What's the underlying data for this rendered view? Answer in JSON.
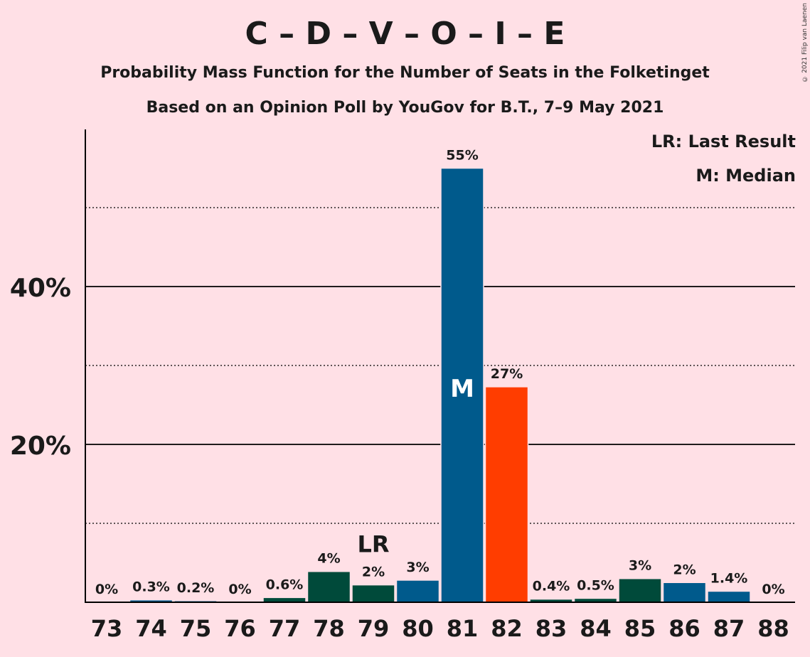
{
  "header": {
    "title": "C – D – V – O – I – E",
    "subtitle": "Probability Mass Function for the Number of Seats in the Folketinget",
    "subtitle2": "Based on an Opinion Poll by YouGov for B.T., 7–9 May 2021",
    "copyright": "© 2021 Filip van Laenen"
  },
  "legend": {
    "last_result": "LR: Last Result",
    "median": "M: Median"
  },
  "chart_data": {
    "type": "bar",
    "categories": [
      "73",
      "74",
      "75",
      "76",
      "77",
      "78",
      "79",
      "80",
      "81",
      "82",
      "83",
      "84",
      "85",
      "86",
      "87",
      "88"
    ],
    "values": [
      0,
      0.3,
      0.2,
      0,
      0.6,
      3.9,
      2.2,
      2.8,
      55,
      27.3,
      0.4,
      0.5,
      3.0,
      2.5,
      1.4,
      0
    ],
    "data_labels": [
      "0%",
      "0.3%",
      "0.2%",
      "0%",
      "0.6%",
      "4%",
      "2%",
      "3%",
      "55%",
      "27%",
      "0.4%",
      "0.5%",
      "3%",
      "2%",
      "1.4%",
      "0%"
    ],
    "bar_colors": [
      "#005A8C",
      "#005A8C",
      "#005A8C",
      "#005A8C",
      "#004A3A",
      "#004A3A",
      "#004A3A",
      "#005A8C",
      "#005A8C",
      "#FF3D00",
      "#004A3A",
      "#004A3A",
      "#004A3A",
      "#005A8C",
      "#005A8C",
      "#005A8C"
    ],
    "ylim": [
      0,
      60
    ],
    "y_ticks": [
      {
        "value": 20,
        "label": "20%"
      },
      {
        "value": 40,
        "label": "40%"
      }
    ],
    "y_minor_gridlines": [
      10,
      30,
      50
    ],
    "markers": {
      "last_result": {
        "category": "79",
        "label": "LR"
      },
      "median": {
        "category": "81",
        "label": "M"
      }
    },
    "legend_position": "top-right",
    "grid": true
  }
}
